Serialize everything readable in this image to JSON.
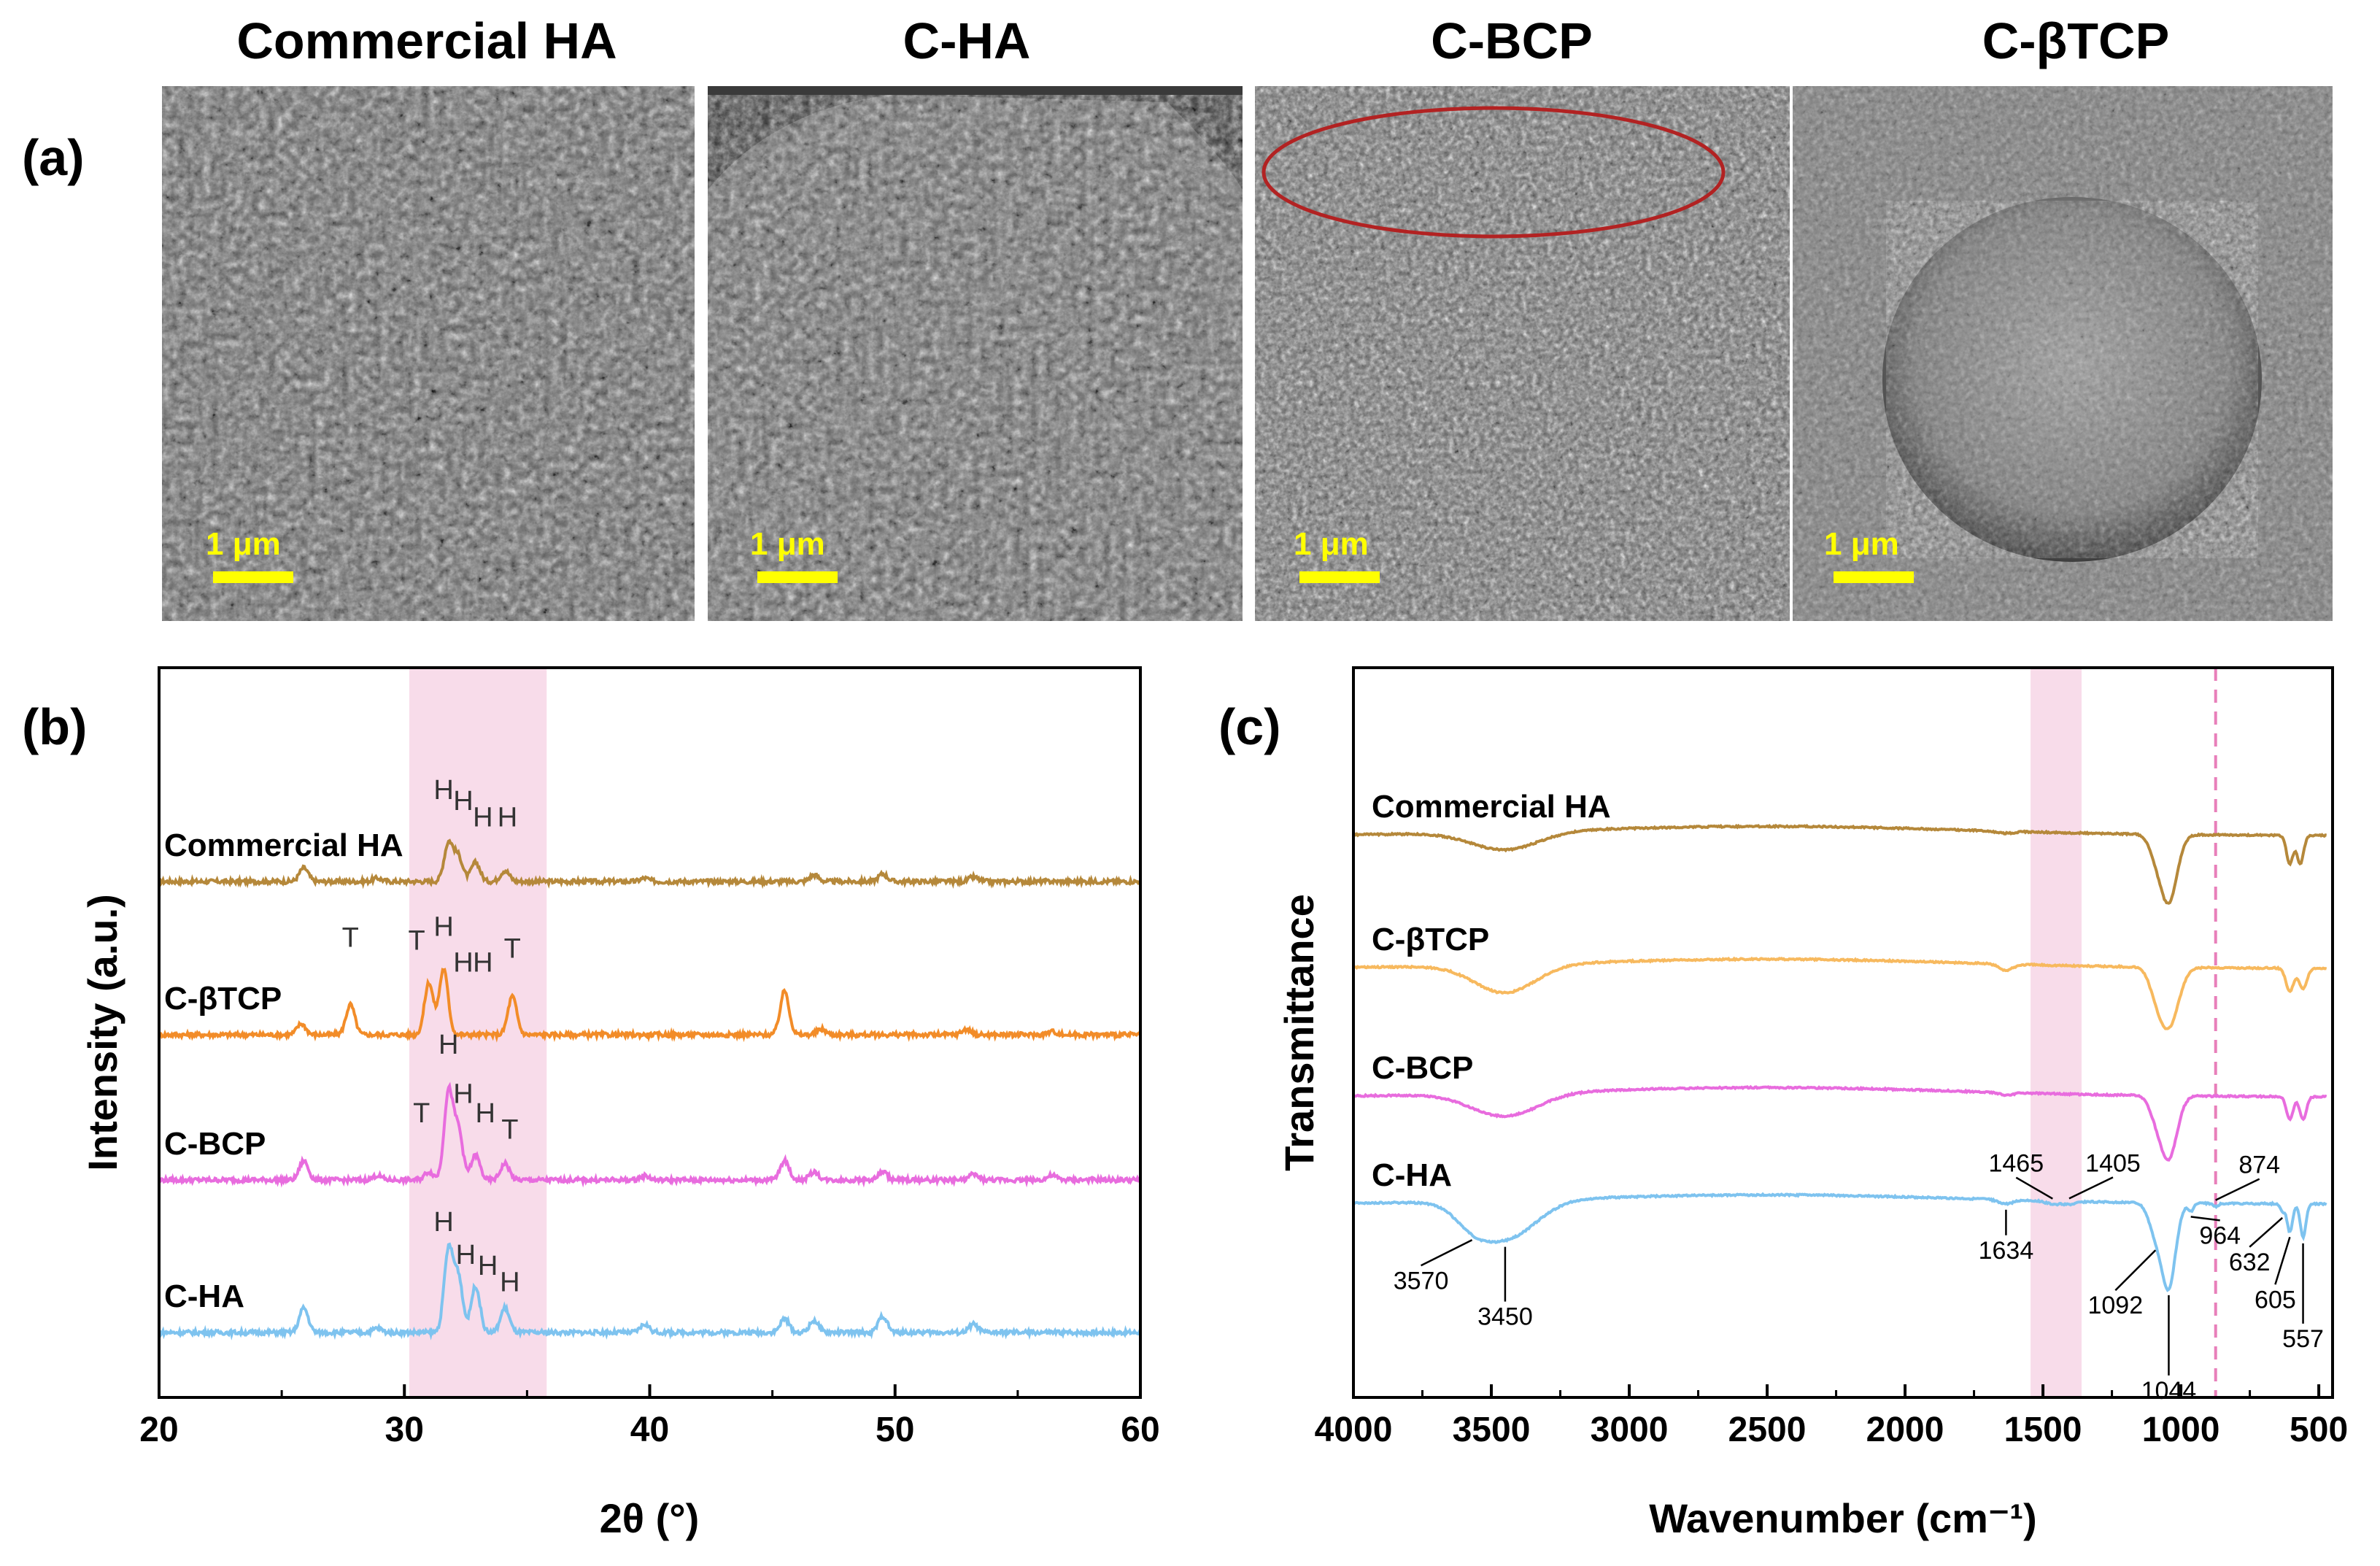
{
  "panels": {
    "a": "(a)",
    "b": "(b)",
    "c": "(c)"
  },
  "sem": {
    "images": [
      {
        "title": "Commercial HA",
        "scale": "1 μm",
        "texture": "fine-porous"
      },
      {
        "title": "C-HA",
        "scale": "1 μm",
        "texture": "porous-agglomerate"
      },
      {
        "title": "C-BCP",
        "scale": "1 μm",
        "texture": "granular",
        "highlight": "ellipse"
      },
      {
        "title": "C-βTCP",
        "scale": "1 μm",
        "texture": "spherical"
      }
    ],
    "colors": {
      "bg": "#6b6b6b",
      "highlight": "#b22222",
      "scalebar": "#ffff00"
    }
  },
  "chart_data": [
    {
      "id": "xrd",
      "type": "line",
      "title": "",
      "xlabel": "2θ (°)",
      "ylabel": "Intensity (a.u.)",
      "xlim": [
        20,
        60
      ],
      "xticks": [
        "20",
        "30",
        "40",
        "50",
        "60"
      ],
      "highlight_range": [
        30.2,
        35.8
      ],
      "highlight_color": "#f8dcea",
      "series": [
        {
          "name": "Commercial HA",
          "color": "#b5883a",
          "peaks": [
            [
              25.9,
              0.25
            ],
            [
              28.9,
              0.06
            ],
            [
              31.8,
              0.7
            ],
            [
              32.2,
              0.45
            ],
            [
              32.9,
              0.35
            ],
            [
              34.1,
              0.2
            ],
            [
              39.8,
              0.06
            ],
            [
              46.7,
              0.12
            ],
            [
              49.5,
              0.14
            ],
            [
              53.2,
              0.08
            ]
          ],
          "markers": [
            {
              "text": "H",
              "x": 31.6,
              "h": 1.4
            },
            {
              "text": "H",
              "x": 32.4,
              "h": 1.2
            },
            {
              "text": "H",
              "x": 33.2,
              "h": 0.9
            },
            {
              "text": "H",
              "x": 34.2,
              "h": 0.9
            }
          ]
        },
        {
          "name": "C-βTCP",
          "color": "#f28c28",
          "peaks": [
            [
              25.8,
              0.2
            ],
            [
              27.8,
              0.55
            ],
            [
              31.0,
              0.95
            ],
            [
              31.6,
              1.2
            ],
            [
              34.4,
              0.7
            ],
            [
              45.5,
              0.8
            ],
            [
              47.0,
              0.1
            ],
            [
              52.9,
              0.1
            ],
            [
              56.4,
              0.06
            ]
          ],
          "markers": [
            {
              "text": "T",
              "x": 27.8,
              "h": 1.5
            },
            {
              "text": "T",
              "x": 30.5,
              "h": 1.45
            },
            {
              "text": "H",
              "x": 31.6,
              "h": 1.7
            },
            {
              "text": "H",
              "x": 32.4,
              "h": 1.05
            },
            {
              "text": "H",
              "x": 33.2,
              "h": 1.05
            },
            {
              "text": "T",
              "x": 34.4,
              "h": 1.3
            }
          ]
        },
        {
          "name": "C-BCP",
          "color": "#e86cde",
          "peaks": [
            [
              25.9,
              0.35
            ],
            [
              28.9,
              0.08
            ],
            [
              31.0,
              0.15
            ],
            [
              31.8,
              1.6
            ],
            [
              32.2,
              0.9
            ],
            [
              32.9,
              0.45
            ],
            [
              34.1,
              0.3
            ],
            [
              39.8,
              0.08
            ],
            [
              45.5,
              0.35
            ],
            [
              46.7,
              0.15
            ],
            [
              49.5,
              0.15
            ],
            [
              53.2,
              0.1
            ],
            [
              56.4,
              0.08
            ]
          ],
          "markers": [
            {
              "text": "T",
              "x": 30.7,
              "h": 0.95
            },
            {
              "text": "H",
              "x": 31.8,
              "h": 2.2
            },
            {
              "text": "H",
              "x": 32.4,
              "h": 1.3
            },
            {
              "text": "H",
              "x": 33.3,
              "h": 0.95
            },
            {
              "text": "T",
              "x": 34.3,
              "h": 0.65
            }
          ]
        },
        {
          "name": "C-HA",
          "color": "#7ec3ef",
          "peaks": [
            [
              25.9,
              0.45
            ],
            [
              28.9,
              0.08
            ],
            [
              31.8,
              1.5
            ],
            [
              32.2,
              1.0
            ],
            [
              32.9,
              0.85
            ],
            [
              34.1,
              0.45
            ],
            [
              39.8,
              0.15
            ],
            [
              45.5,
              0.25
            ],
            [
              46.7,
              0.22
            ],
            [
              49.5,
              0.3
            ],
            [
              53.2,
              0.15
            ]
          ],
          "markers": [
            {
              "text": "H",
              "x": 31.6,
              "h": 1.75
            },
            {
              "text": "H",
              "x": 32.5,
              "h": 1.15
            },
            {
              "text": "H",
              "x": 33.4,
              "h": 0.95
            },
            {
              "text": "H",
              "x": 34.3,
              "h": 0.65
            }
          ]
        }
      ]
    },
    {
      "id": "ftir",
      "type": "line",
      "title": "",
      "xlabel": "Wavenumber (cm⁻¹)",
      "ylabel": "Transmittance",
      "xlim": [
        4000,
        450
      ],
      "xticks": [
        "4000",
        "3500",
        "3000",
        "2500",
        "2000",
        "1500",
        "1000",
        "500"
      ],
      "highlight_range": [
        1545,
        1360
      ],
      "highlight_color": "#f8dcea",
      "dashed_line": 874,
      "dashed_color": "#e87fba",
      "series": [
        {
          "name": "Commercial HA",
          "color": "#b5883a",
          "bands": [
            [
              3450,
              0.35,
              120
            ],
            [
              1634,
              0.04,
              30
            ],
            [
              1044,
              1.3,
              30
            ],
            [
              1092,
              0.3,
              25
            ],
            [
              605,
              0.55,
              12
            ],
            [
              567,
              0.55,
              12
            ]
          ]
        },
        {
          "name": "C-βTCP",
          "color": "#f7b95e",
          "bands": [
            [
              3450,
              0.55,
              110
            ],
            [
              1634,
              0.12,
              25
            ],
            [
              1044,
              1.15,
              35
            ],
            [
              1092,
              0.3,
              25
            ],
            [
              605,
              0.45,
              14
            ],
            [
              557,
              0.4,
              14
            ]
          ]
        },
        {
          "name": "C-BCP",
          "color": "#e86cde",
          "bands": [
            [
              3450,
              0.45,
              120
            ],
            [
              1634,
              0.05,
              25
            ],
            [
              1044,
              1.2,
              30
            ],
            [
              1092,
              0.3,
              25
            ],
            [
              605,
              0.45,
              12
            ],
            [
              557,
              0.45,
              12
            ]
          ]
        },
        {
          "name": "C-HA",
          "color": "#7ec3ef",
          "bands": [
            [
              3570,
              0.25,
              60
            ],
            [
              3450,
              0.75,
              110
            ],
            [
              1634,
              0.08,
              25
            ],
            [
              1465,
              0.06,
              25
            ],
            [
              1405,
              0.06,
              25
            ],
            [
              1092,
              0.55,
              25
            ],
            [
              1044,
              1.6,
              25
            ],
            [
              964,
              0.15,
              10
            ],
            [
              874,
              0.06,
              10
            ],
            [
              632,
              0.15,
              8
            ],
            [
              605,
              0.55,
              10
            ],
            [
              557,
              0.65,
              10
            ]
          ]
        }
      ],
      "annotations": [
        "3570",
        "3450",
        "1634",
        "1465",
        "1405",
        "1092",
        "1044",
        "964",
        "874",
        "632",
        "605",
        "557"
      ]
    }
  ]
}
